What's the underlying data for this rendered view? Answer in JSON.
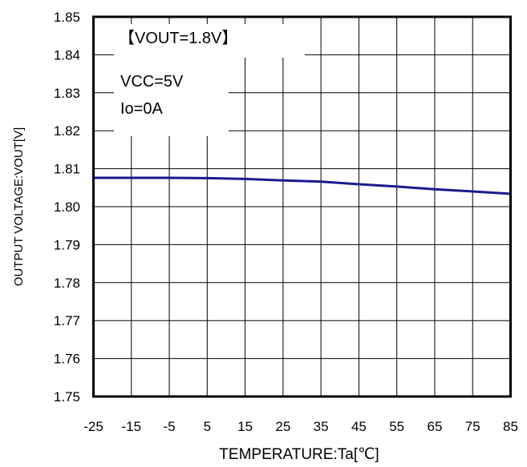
{
  "chart_data": {
    "type": "line",
    "title": "",
    "xlabel": "TEMPERATURE:Ta[℃]",
    "ylabel": "OUTPUT VOLTAGE:VOUT[V]",
    "xlim": [
      -25,
      85
    ],
    "ylim": [
      1.75,
      1.85
    ],
    "x_ticks": [
      "-25",
      "-15",
      "-5",
      "5",
      "15",
      "25",
      "35",
      "45",
      "55",
      "65",
      "75",
      "85"
    ],
    "y_ticks": [
      "1.85",
      "1.84",
      "1.83",
      "1.82",
      "1.81",
      "1.80",
      "1.79",
      "1.78",
      "1.77",
      "1.76",
      "1.75"
    ],
    "grid": true,
    "annotations": [
      "【VOUT=1.8V】",
      "VCC=5V",
      "Io=0A"
    ],
    "series": [
      {
        "color": "#1a1a8c",
        "x": [
          -25,
          -15,
          -5,
          5,
          15,
          25,
          35,
          45,
          55,
          65,
          75,
          85
        ],
        "y": [
          1.8076,
          1.8076,
          1.8076,
          1.8075,
          1.8073,
          1.8069,
          1.8066,
          1.8059,
          1.8053,
          1.8046,
          1.804,
          1.8034
        ]
      }
    ]
  }
}
